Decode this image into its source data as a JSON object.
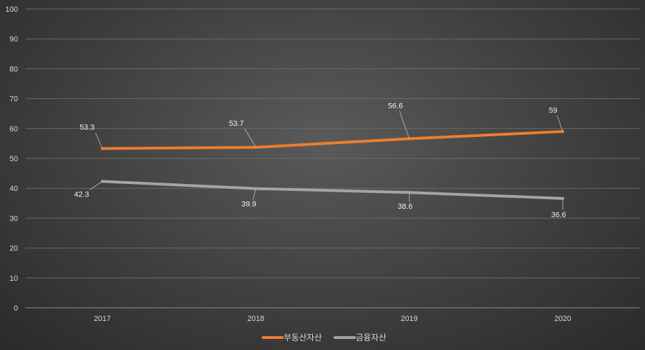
{
  "chart_data": {
    "type": "line",
    "categories": [
      "2017",
      "2018",
      "2019",
      "2020"
    ],
    "ylim": [
      0,
      100
    ],
    "yticks": [
      0,
      10,
      20,
      30,
      40,
      50,
      60,
      70,
      80,
      90,
      100
    ],
    "grid": true,
    "legend_position": "bottom",
    "series": [
      {
        "name": "부동산자산",
        "values": [
          53.3,
          53.7,
          56.6,
          59
        ],
        "color": "#ed7d31"
      },
      {
        "name": "금융자산",
        "values": [
          42.3,
          39.9,
          38.6,
          36.6
        ],
        "color": "#a5a5a5"
      }
    ]
  }
}
